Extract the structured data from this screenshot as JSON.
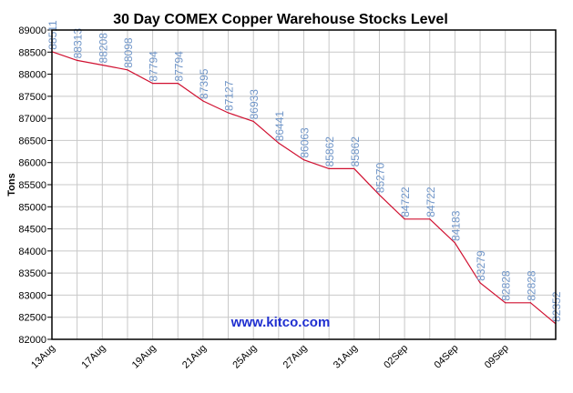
{
  "chart_data": {
    "type": "line",
    "title": "30 Day COMEX Copper Warehouse Stocks Level",
    "xlabel": "",
    "ylabel": "Tons",
    "ylim": [
      82000,
      89000
    ],
    "yticks": [
      82000,
      82500,
      83000,
      83500,
      84000,
      84500,
      85000,
      85500,
      86000,
      86500,
      87000,
      87500,
      88000,
      88500,
      89000
    ],
    "grid": true,
    "watermark": "www.kitco.com",
    "x_tick_labels": [
      {
        "index": 0,
        "label": "13Aug"
      },
      {
        "index": 2,
        "label": "17Aug"
      },
      {
        "index": 4,
        "label": "19Aug"
      },
      {
        "index": 6,
        "label": "21Aug"
      },
      {
        "index": 8,
        "label": "25Aug"
      },
      {
        "index": 10,
        "label": "27Aug"
      },
      {
        "index": 12,
        "label": "31Aug"
      },
      {
        "index": 14,
        "label": "02Sep"
      },
      {
        "index": 16,
        "label": "04Sep"
      },
      {
        "index": 18,
        "label": "09Sep"
      }
    ],
    "series": [
      {
        "name": "Copper Warehouse Stocks",
        "color": "#d01030",
        "values": [
          88511,
          88313,
          88208,
          88098,
          87794,
          87794,
          87395,
          87127,
          86933,
          86441,
          86063,
          85862,
          85862,
          85270,
          84722,
          84722,
          84183,
          83279,
          82828,
          82828,
          82352
        ]
      }
    ],
    "colors": {
      "grid": "#c8c8c8",
      "data_label": "#6f95c8",
      "watermark": "#1f2fd0"
    }
  }
}
